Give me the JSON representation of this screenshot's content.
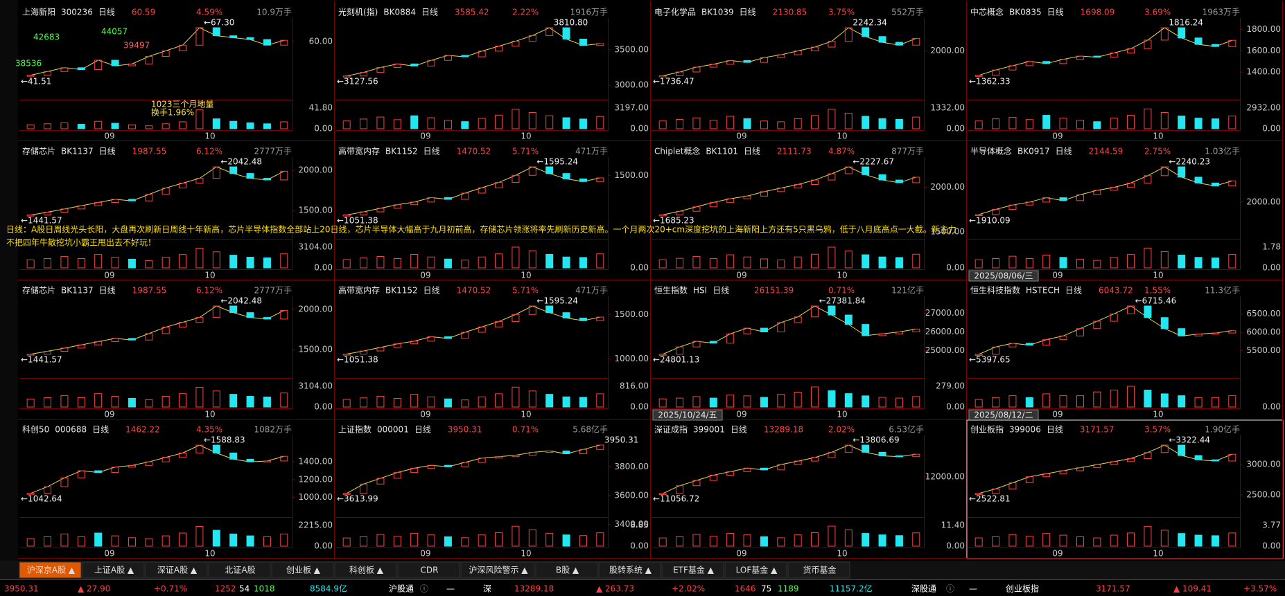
{
  "panels": [
    {
      "name": "上海新阳",
      "code": "300236",
      "period": "日线",
      "price": "60.59",
      "change": "4.59%",
      "volume": "10.9万手",
      "yticks": [
        {
          "value": 60,
          "label": "60.00"
        }
      ],
      "vol_top": {
        "value": 41.8,
        "label": "41.80"
      },
      "vol_zero": "0.00",
      "xlabels": [
        "09",
        "10"
      ],
      "high": {
        "value": 67.3,
        "label": "←67.30"
      },
      "low": {
        "value": 41.51,
        "label": "←41.51"
      },
      "closes": [
        42,
        44,
        46,
        45,
        50,
        47,
        48,
        52,
        55,
        58,
        67.3,
        63,
        62,
        61,
        58,
        60.59
      ],
      "volumes": [
        8,
        10,
        12,
        9,
        15,
        11,
        8,
        6,
        10,
        14,
        38,
        20,
        15,
        12,
        10,
        14
      ],
      "notes": [
        "42683",
        "44057",
        "39497",
        "38536",
        "1023三个月地量",
        "换手1.96%"
      ]
    },
    {
      "name": "光刻机(指)",
      "code": "BK0884",
      "period": "日线",
      "price": "3585.42",
      "change": "2.22%",
      "volume": "1916万手",
      "yticks": [
        {
          "value": 3500,
          "label": "3500.00"
        },
        {
          "value": 3000,
          "label": "3000.00"
        }
      ],
      "vol_top": {
        "value": 3197,
        "label": "3197.00"
      },
      "vol_zero": "0.00",
      "xlabels": [
        "09",
        "10"
      ],
      "high": {
        "value": 3810.8,
        "label": "3810.80"
      },
      "low": {
        "value": 3127.56,
        "label": "←3127.56"
      },
      "closes": [
        3130,
        3180,
        3250,
        3300,
        3270,
        3350,
        3420,
        3400,
        3480,
        3550,
        3620,
        3700,
        3810,
        3650,
        3560,
        3585.42
      ],
      "volumes": [
        1200,
        1500,
        1800,
        1400,
        2000,
        1700,
        1300,
        1100,
        1600,
        2100,
        3000,
        2500,
        2000,
        1700,
        1500,
        1900
      ]
    },
    {
      "name": "电子化学品",
      "code": "BK1039",
      "period": "日线",
      "price": "2130.85",
      "change": "3.75%",
      "volume": "552万手",
      "yticks": [
        {
          "value": 2000,
          "label": "2000.00"
        }
      ],
      "vol_top": {
        "value": 1332,
        "label": "1332.00"
      },
      "vol_zero": "0.00",
      "xlabels": [
        "09",
        "10"
      ],
      "high": {
        "value": 2242.34,
        "label": "2242.34"
      },
      "low": {
        "value": 1736.47,
        "label": "←1736.47"
      },
      "closes": [
        1740,
        1780,
        1830,
        1860,
        1900,
        1880,
        1930,
        1960,
        2000,
        2040,
        2100,
        2242,
        2150,
        2090,
        2060,
        2130.85
      ],
      "volumes": [
        500,
        600,
        700,
        550,
        800,
        650,
        500,
        450,
        650,
        850,
        1250,
        1000,
        800,
        650,
        600,
        750
      ]
    },
    {
      "name": "中芯概念",
      "code": "BK0835",
      "period": "日线",
      "price": "1698.09",
      "change": "3.69%",
      "volume": "1963万手",
      "yticks": [
        {
          "value": 1800,
          "label": "1800.00"
        },
        {
          "value": 1600,
          "label": "1600.00"
        },
        {
          "value": 1400,
          "label": "1400.00"
        }
      ],
      "vol_top": {
        "value": 2932,
        "label": "2932.00"
      },
      "vol_zero": "0.00",
      "xlabels": [
        "09",
        "10"
      ],
      "high": {
        "value": 1816.24,
        "label": "1816.24"
      },
      "low": {
        "value": 1362.33,
        "label": "←1362.33"
      },
      "closes": [
        1370,
        1420,
        1460,
        1500,
        1480,
        1520,
        1550,
        1540,
        1580,
        1620,
        1700,
        1816,
        1720,
        1660,
        1640,
        1698.09
      ],
      "volumes": [
        1100,
        1400,
        1600,
        1300,
        1900,
        1500,
        1200,
        1000,
        1500,
        1900,
        2800,
        2300,
        1800,
        1500,
        1400,
        1800
      ]
    },
    {
      "name": "存储芯片",
      "code": "BK1137",
      "period": "日线",
      "price": "1987.55",
      "change": "6.12%",
      "volume": "2777万手",
      "yticks": [
        {
          "value": 2000,
          "label": "2000.00"
        },
        {
          "value": 1500,
          "label": "1500.00"
        }
      ],
      "vol_top": {
        "value": 3104,
        "label": "3104.00"
      },
      "vol_zero": "0.00",
      "xlabels": [
        "09",
        "10"
      ],
      "high": {
        "value": 2042.48,
        "label": "←2042.48"
      },
      "low": {
        "value": 1441.57,
        "label": "←1441.57"
      },
      "closes": [
        1445,
        1480,
        1520,
        1560,
        1600,
        1640,
        1620,
        1700,
        1780,
        1840,
        1900,
        2042,
        1960,
        1900,
        1880,
        1987.55
      ],
      "volumes": [
        1200,
        1400,
        1700,
        1400,
        2000,
        1600,
        1300,
        1100,
        1600,
        2000,
        2950,
        2400,
        1900,
        1600,
        1500,
        2100
      ]
    },
    {
      "name": "高带宽内存",
      "code": "BK1152",
      "period": "日线",
      "price": "1470.52",
      "change": "5.71%",
      "volume": "471万手",
      "yticks": [
        {
          "value": 1500,
          "label": "1500.00"
        }
      ],
      "vol_zero": "0.00",
      "xlabels": [
        "09",
        "10"
      ],
      "high": {
        "value": 1595.24,
        "label": "←1595.24"
      },
      "low": {
        "value": 1051.38,
        "label": "←1051.38"
      },
      "closes": [
        1055,
        1090,
        1130,
        1170,
        1200,
        1250,
        1230,
        1300,
        1360,
        1420,
        1500,
        1595,
        1520,
        1460,
        1430,
        1470.52
      ],
      "volumes": [
        160,
        190,
        220,
        180,
        260,
        210,
        170,
        150,
        210,
        270,
        400,
        330,
        260,
        210,
        200,
        270
      ]
    },
    {
      "name": "Chiplet概念",
      "code": "BK1101",
      "period": "日线",
      "price": "2111.73",
      "change": "4.87%",
      "volume": "877万手",
      "yticks": [
        {
          "value": 2000,
          "label": "2000.00"
        },
        {
          "value": 1500,
          "label": "1500.00"
        }
      ],
      "vol_zero": "0.00",
      "xlabels": [
        "09",
        "10"
      ],
      "high": {
        "value": 2227.67,
        "label": "←2227.67"
      },
      "low": {
        "value": 1685.23,
        "label": "←1685.23"
      },
      "closes": [
        1690,
        1730,
        1780,
        1830,
        1870,
        1900,
        1950,
        1990,
        2030,
        2080,
        2150,
        2227,
        2140,
        2080,
        2050,
        2111.73
      ],
      "volumes": [
        300,
        350,
        420,
        340,
        480,
        400,
        330,
        290,
        400,
        500,
        760,
        620,
        480,
        400,
        380,
        500
      ]
    },
    {
      "name": "半导体概念",
      "code": "BK0917",
      "period": "日线",
      "price": "2144.59",
      "change": "2.75%",
      "volume": "1.03亿手",
      "yticks": [
        {
          "value": 2000,
          "label": "2000.00"
        }
      ],
      "vol_top": {
        "value": 1.78,
        "label": "1.78"
      },
      "vol_zero": "0.00",
      "xlabels": [
        "09",
        "10"
      ],
      "high": {
        "value": 2240.23,
        "label": "←2240.23"
      },
      "low": {
        "value": 1910.09,
        "label": "←1910.09"
      },
      "closes": [
        1915,
        1950,
        1980,
        2000,
        2030,
        2010,
        2050,
        2080,
        2100,
        2130,
        2180,
        2240,
        2170,
        2130,
        2110,
        2144.59
      ],
      "volumes": [
        0.7,
        0.8,
        1.0,
        0.8,
        1.1,
        0.9,
        0.75,
        0.65,
        0.9,
        1.15,
        1.7,
        1.4,
        1.1,
        0.9,
        0.85,
        1.15
      ],
      "date_box": "2025/08/06/三"
    },
    {
      "name": "存储芯片",
      "code": "BK1137",
      "period": "日线",
      "price": "1987.55",
      "change": "6.12%",
      "volume": "2777万手",
      "yticks": [
        {
          "value": 2000,
          "label": "2000.00"
        },
        {
          "value": 1500,
          "label": "1500.00"
        }
      ],
      "vol_top": {
        "value": 3104,
        "label": "3104.00"
      },
      "vol_zero": "0.00",
      "xlabels": [
        "09",
        "10"
      ],
      "high": {
        "value": 2042.48,
        "label": "←2042.48"
      },
      "low": {
        "value": 1441.57,
        "label": "←1441.57"
      },
      "closes": [
        1445,
        1480,
        1520,
        1560,
        1600,
        1640,
        1620,
        1700,
        1780,
        1840,
        1900,
        2042,
        1960,
        1900,
        1880,
        1987.55
      ],
      "volumes": [
        1200,
        1400,
        1700,
        1400,
        2000,
        1600,
        1300,
        1100,
        1600,
        2000,
        2950,
        2400,
        1900,
        1600,
        1500,
        2100
      ]
    },
    {
      "name": "高带宽内存",
      "code": "BK1152",
      "period": "日线",
      "price": "1470.52",
      "change": "5.71%",
      "volume": "471万手",
      "yticks": [
        {
          "value": 1500,
          "label": "1500.00"
        },
        {
          "value": 1000,
          "label": "1000.00"
        }
      ],
      "vol_top": {
        "value": 816,
        "label": "816.00"
      },
      "vol_zero": "0.00",
      "xlabels": [
        "09",
        "10"
      ],
      "high": {
        "value": 1595.24,
        "label": "←1595.24"
      },
      "low": {
        "value": 1051.38,
        "label": "←1051.38"
      },
      "closes": [
        1055,
        1090,
        1130,
        1170,
        1200,
        1250,
        1230,
        1300,
        1360,
        1420,
        1500,
        1595,
        1520,
        1460,
        1430,
        1470.52
      ],
      "volumes": [
        300,
        360,
        420,
        340,
        500,
        400,
        320,
        280,
        400,
        520,
        780,
        630,
        500,
        400,
        380,
        520
      ]
    },
    {
      "name": "恒生指数",
      "code": "HSI",
      "period": "日线",
      "price": "26151.39",
      "change": "0.71%",
      "volume": "121亿手",
      "yticks": [
        {
          "value": 27000,
          "label": "27000.00"
        },
        {
          "value": 26000,
          "label": "26000.00"
        },
        {
          "value": 25000,
          "label": "25000.00"
        }
      ],
      "vol_top": {
        "value": 279,
        "label": "279.00"
      },
      "vol_zero": "0.00",
      "xlabels": [
        "09",
        "10"
      ],
      "high": {
        "value": 27381.84,
        "label": "←27381.84"
      },
      "low": {
        "value": 24801.13,
        "label": "←24801.13"
      },
      "closes": [
        24810,
        25200,
        25500,
        25400,
        25900,
        26200,
        26000,
        26500,
        26800,
        27381,
        26900,
        26400,
        25800,
        25900,
        26000,
        26151.39
      ],
      "volumes": [
        110,
        120,
        140,
        120,
        160,
        150,
        130,
        170,
        200,
        270,
        220,
        180,
        150,
        130,
        120,
        140
      ],
      "date_box": "2025/10/24/五"
    },
    {
      "name": "恒生科技指数",
      "code": "HSTECH",
      "period": "日线",
      "price": "6043.72",
      "change": "1.55%",
      "volume": "11.3亿手",
      "yticks": [
        {
          "value": 6500,
          "label": "6500.00"
        },
        {
          "value": 6000,
          "label": "6000.00"
        },
        {
          "value": 5500,
          "label": "5500.00"
        }
      ],
      "vol_zero": "0.00",
      "xlabels": [
        "09",
        "10"
      ],
      "high": {
        "value": 6715.46,
        "label": "←6715.46"
      },
      "low": {
        "value": 5397.65,
        "label": "←5397.65"
      },
      "closes": [
        5400,
        5600,
        5700,
        5650,
        5800,
        5900,
        6100,
        6300,
        6500,
        6715,
        6400,
        6100,
        5900,
        5950,
        5980,
        6043.72
      ],
      "volumes": [
        4,
        5,
        6,
        5,
        7,
        6,
        6,
        8,
        9,
        11,
        9,
        7,
        6,
        5,
        5,
        6
      ],
      "date_box": "2025/08/12/二"
    },
    {
      "name": "科创50",
      "code": "000688",
      "period": "日线",
      "price": "1462.22",
      "change": "4.35%",
      "volume": "1082万手",
      "yticks": [
        {
          "value": 1400,
          "label": "1400.00"
        },
        {
          "value": 1200,
          "label": "1200.00"
        },
        {
          "value": 1000,
          "label": "1000.00"
        }
      ],
      "vol_top": {
        "value": 2215,
        "label": "2215.00"
      },
      "vol_zero": "0.00",
      "xlabels": [
        "09",
        "10"
      ],
      "high": {
        "value": 1588.83,
        "label": "←1588.83"
      },
      "low": {
        "value": 1042.64,
        "label": "←1042.64"
      },
      "closes": [
        1045,
        1120,
        1220,
        1300,
        1280,
        1340,
        1360,
        1400,
        1450,
        1500,
        1588,
        1500,
        1430,
        1400,
        1410,
        1462.22
      ],
      "volumes": [
        800,
        1000,
        1300,
        1000,
        1400,
        1100,
        900,
        800,
        1100,
        1400,
        2100,
        1700,
        1300,
        1100,
        1000,
        1300
      ]
    },
    {
      "name": "上证指数",
      "code": "000001",
      "period": "日线",
      "price": "3950.31",
      "change": "0.71%",
      "volume": "5.68亿手",
      "yticks": [
        {
          "value": 3800,
          "label": "3800.00"
        },
        {
          "value": 3600,
          "label": "3600.00"
        },
        {
          "value": 3400,
          "label": "3400.00"
        }
      ],
      "vol_top": {
        "value": 8.85,
        "label": "8.85"
      },
      "vol_zero": "0.00",
      "xlabels": [
        "09",
        "10"
      ],
      "high": {
        "value": 3950.31,
        "label": "3950.31"
      },
      "low": {
        "value": 3613.99,
        "label": "←3613.99"
      },
      "closes": [
        3615,
        3680,
        3720,
        3760,
        3790,
        3810,
        3800,
        3830,
        3860,
        3870,
        3880,
        3900,
        3910,
        3890,
        3920,
        3950.31
      ],
      "volumes": [
        3.5,
        4,
        5,
        4.2,
        5.5,
        4.8,
        4,
        3.6,
        4.8,
        5.8,
        8.5,
        7,
        5.5,
        4.8,
        4.5,
        5.7
      ]
    },
    {
      "name": "深证成指",
      "code": "399001",
      "period": "日线",
      "price": "13289.18",
      "change": "2.02%",
      "volume": "6.53亿手",
      "yticks": [
        {
          "value": 12000,
          "label": "12000.00"
        }
      ],
      "vol_top": {
        "value": 11.4,
        "label": "11.40"
      },
      "vol_zero": "0.00",
      "xlabels": [
        "09",
        "10"
      ],
      "high": {
        "value": 13806.69,
        "label": "←13806.69"
      },
      "low": {
        "value": 11056.72,
        "label": "←11056.72"
      },
      "closes": [
        11060,
        11500,
        11800,
        12100,
        12300,
        12500,
        12400,
        12700,
        12900,
        13100,
        13400,
        13806,
        13400,
        13200,
        13150,
        13289.18
      ],
      "volumes": [
        4.5,
        5.2,
        6.5,
        5.4,
        7,
        6.2,
        5.2,
        4.6,
        6.2,
        7.4,
        11,
        9,
        7,
        6.2,
        5.8,
        7.3
      ]
    },
    {
      "name": "创业板指",
      "code": "399006",
      "period": "日线",
      "price": "3171.57",
      "change": "3.57%",
      "volume": "1.90亿手",
      "yticks": [
        {
          "value": 3000,
          "label": "3000.00"
        },
        {
          "value": 2500,
          "label": "2500.00"
        }
      ],
      "vol_top": {
        "value": 3.77,
        "label": "3.77"
      },
      "vol_zero": "0.00",
      "xlabels": [
        "09",
        "10"
      ],
      "high": {
        "value": 3322.44,
        "label": "←3322.44"
      },
      "low": {
        "value": 2522.81,
        "label": "←2522.81"
      },
      "closes": [
        2525,
        2600,
        2700,
        2800,
        2850,
        2900,
        2950,
        3000,
        3050,
        3100,
        3200,
        3322,
        3150,
        3080,
        3060,
        3171.57
      ],
      "volumes": [
        1.5,
        1.7,
        2.1,
        1.8,
        2.3,
        2,
        1.7,
        1.5,
        2,
        2.4,
        3.6,
        2.9,
        2.3,
        2,
        1.9,
        2.4
      ]
    }
  ],
  "overlay": [
    "日线：A股日周线光头长阳，大盘再次刷新日周线十年新高，芯片半导体指数全部站上20日线，芯片半导体大幅高于九月初前高，存储芯片领涨将率先刷新历史新高。一个月两次20+cm深度挖坑的上海新阳上方还有5只黑乌鸦，低于八月底高点一大截。新主力",
    "不把四年牛散挖坑小霸王甩出去不好玩！"
  ],
  "tabs": [
    "沪深京A股 ▲",
    "上证A股 ▲",
    "深证A股 ▲",
    "北证A股",
    "创业板 ▲",
    "科创板 ▲",
    "CDR",
    "沪深风险警示 ▲",
    "B股 ▲",
    "股转系统 ▲",
    "ETF基金 ▲",
    "LOF基金 ▲",
    "货币基金"
  ],
  "status": [
    "3950.31",
    "▲ 27.90",
    "+0.71%",
    "1252",
    "54",
    "1018",
    "8584.9亿",
    "沪股通",
    "ⓘ",
    "—",
    "深",
    "13289.18",
    "▲ 263.73",
    "+2.02%",
    "1646",
    "75",
    "1189",
    "11157.2亿",
    "深股通",
    "ⓘ",
    "—",
    "创业板指",
    "3171.57",
    "▲ 109.41",
    "+3.57%"
  ]
}
